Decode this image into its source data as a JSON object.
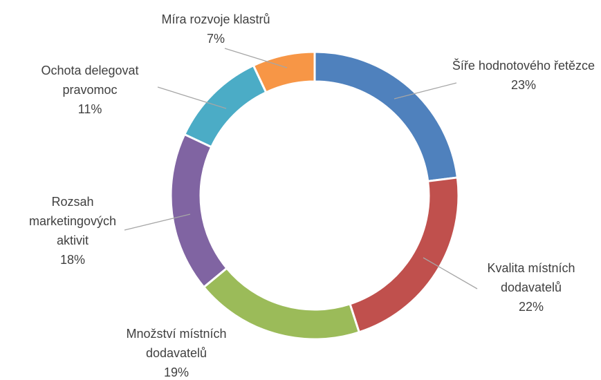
{
  "chart_data": {
    "type": "donut",
    "categories": [
      "Šíře hodnotového řetězce",
      "Kvalita místních dodavatelů",
      "Množství místních dodavatelů",
      "Rozsah marketingových aktivit",
      "Ochota delegovat pravomoc",
      "Míra rozvoje klastrů"
    ],
    "values": [
      23,
      22,
      19,
      18,
      11,
      7
    ],
    "value_labels": [
      "23%",
      "22%",
      "19%",
      "18%",
      "11%",
      "7%"
    ],
    "colors": [
      "#4f81bd",
      "#c0504d",
      "#9bbb59",
      "#8064a2",
      "#4bacc6",
      "#f79646"
    ]
  }
}
